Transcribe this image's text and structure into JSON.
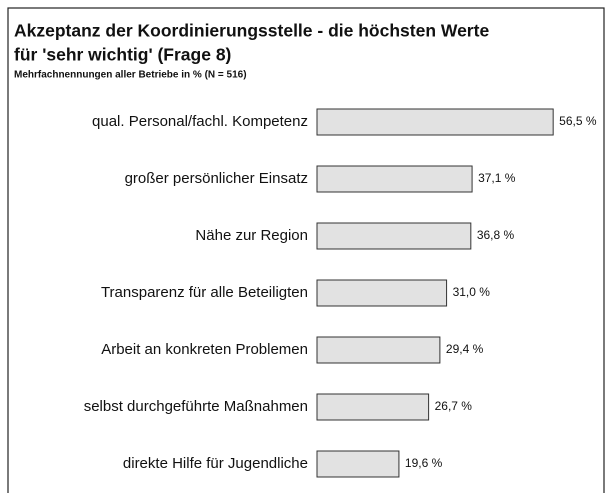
{
  "chart_data": {
    "type": "bar",
    "orientation": "horizontal",
    "title": [
      "Akzeptanz der Koordinierungsstelle - die höchsten Werte",
      "für 'sehr wichtig' (Frage 8)"
    ],
    "subtitle": "Mehrfachnennungen aller Betriebe in % (N = 516)",
    "categories": [
      "qual. Personal/fachl. Kompetenz",
      "großer persönlicher Einsatz",
      "Nähe zur Region",
      "Transparenz für alle Beteiligten",
      "Arbeit an konkreten Problemen",
      "selbst durchgeführte Maßnahmen",
      "direkte Hilfe für Jugendliche"
    ],
    "values": [
      56.5,
      37.1,
      36.8,
      31.0,
      29.4,
      26.7,
      19.6
    ],
    "value_labels": [
      "56,5 %",
      "37,1 %",
      "36,8 %",
      "31,0 %",
      "29,4 %",
      "26,7 %",
      "19,6 %"
    ],
    "color": "#e2e2e2"
  }
}
